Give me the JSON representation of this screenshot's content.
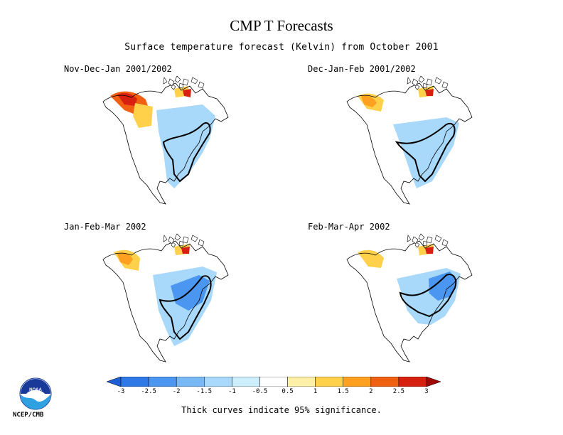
{
  "title": "CMP T Forecasts",
  "subtitle": "Surface temperature forecast (Kelvin) from October 2001",
  "panels": [
    {
      "label": "Nov-Dec-Jan 2001/2002"
    },
    {
      "label": "Dec-Jan-Feb 2001/2002"
    },
    {
      "label": "Jan-Feb-Mar 2002"
    },
    {
      "label": "Feb-Mar-Apr 2002"
    }
  ],
  "colorbar": {
    "ticks": [
      "-3",
      "-2.5",
      "-2",
      "-1.5",
      "-1",
      "-0.5",
      "0.5",
      "1",
      "1.5",
      "2",
      "2.5",
      "3"
    ],
    "colors": [
      "#1e5fd6",
      "#2f78e8",
      "#4a96f0",
      "#78b8f6",
      "#a8d8fa",
      "#cdeffd",
      "#ffffff",
      "#fff0a8",
      "#ffd04a",
      "#ffa020",
      "#f06010",
      "#d82010",
      "#a00808"
    ]
  },
  "footnote": "Thick curves indicate 95% significance.",
  "logo": {
    "text": "NCEP/CMB",
    "inner": "NOAA"
  }
}
